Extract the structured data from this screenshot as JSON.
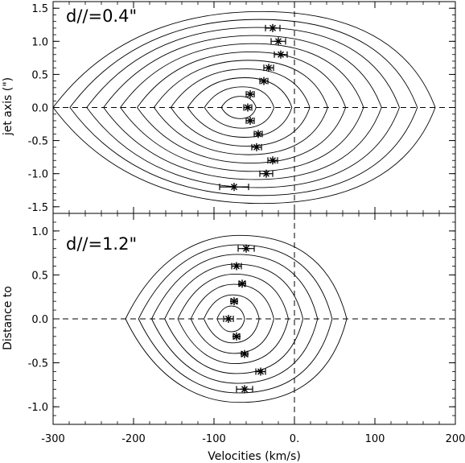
{
  "chart_data": [
    {
      "type": "scatter",
      "panel_label": "d//=0.4\"",
      "xlim": [
        -300,
        200
      ],
      "ylim": [
        -1.6,
        1.6
      ],
      "yticks": [
        -1.5,
        -1.0,
        -0.5,
        0.0,
        0.5,
        1.0,
        1.5
      ],
      "ytick_labels": [
        "-1.5",
        "-1.0",
        "-0.5",
        "0.0",
        "0.5",
        "1.0",
        "1.5"
      ],
      "ylabel": "jet axis (\")",
      "reference_lines": {
        "x": 0,
        "y": 0,
        "style": "dashed"
      },
      "contour_levels": 11,
      "contour_center": {
        "x": -70,
        "y": 0
      },
      "points": [
        {
          "y": 1.2,
          "x": -27,
          "err": 9
        },
        {
          "y": 1.0,
          "x": -20,
          "err": 9
        },
        {
          "y": 0.8,
          "x": -17,
          "err": 8
        },
        {
          "y": 0.6,
          "x": -32,
          "err": 6
        },
        {
          "y": 0.4,
          "x": -38,
          "err": 5
        },
        {
          "y": 0.2,
          "x": -55,
          "err": 5
        },
        {
          "y": 0.0,
          "x": -58,
          "err": 5
        },
        {
          "y": -0.2,
          "x": -55,
          "err": 5
        },
        {
          "y": -0.4,
          "x": -45,
          "err": 5
        },
        {
          "y": -0.6,
          "x": -47,
          "err": 6
        },
        {
          "y": -0.8,
          "x": -27,
          "err": 6
        },
        {
          "y": -1.0,
          "x": -35,
          "err": 8
        },
        {
          "y": -1.2,
          "x": -75,
          "err": 18
        }
      ]
    },
    {
      "type": "scatter",
      "panel_label": "d//=1.2\"",
      "xlim": [
        -300,
        200
      ],
      "ylim": [
        -1.2,
        1.2
      ],
      "yticks": [
        -1.0,
        -0.5,
        0.0,
        0.5,
        1.0
      ],
      "ytick_labels": [
        "-1.0",
        "-0.5",
        "0.0",
        "0.5",
        "1.0"
      ],
      "ylabel": "Distance to",
      "xticks": [
        -300,
        -200,
        -100,
        0,
        100,
        200
      ],
      "xtick_labels": [
        "-300",
        "-200",
        "-100",
        "0.",
        "100",
        "200"
      ],
      "xlabel": "Velocities (km/s)",
      "reference_lines": {
        "x": 0,
        "y": 0,
        "style": "dashed"
      },
      "contour_levels": 8,
      "contour_center": {
        "x": -80,
        "y": 0
      },
      "points": [
        {
          "y": 0.8,
          "x": -60,
          "err": 10
        },
        {
          "y": 0.6,
          "x": -72,
          "err": 6
        },
        {
          "y": 0.4,
          "x": -65,
          "err": 4
        },
        {
          "y": 0.2,
          "x": -75,
          "err": 4
        },
        {
          "y": 0.0,
          "x": -82,
          "err": 6
        },
        {
          "y": -0.2,
          "x": -72,
          "err": 4
        },
        {
          "y": -0.4,
          "x": -62,
          "err": 4
        },
        {
          "y": -0.6,
          "x": -42,
          "err": 6
        },
        {
          "y": -0.8,
          "x": -62,
          "err": 10
        }
      ]
    }
  ]
}
